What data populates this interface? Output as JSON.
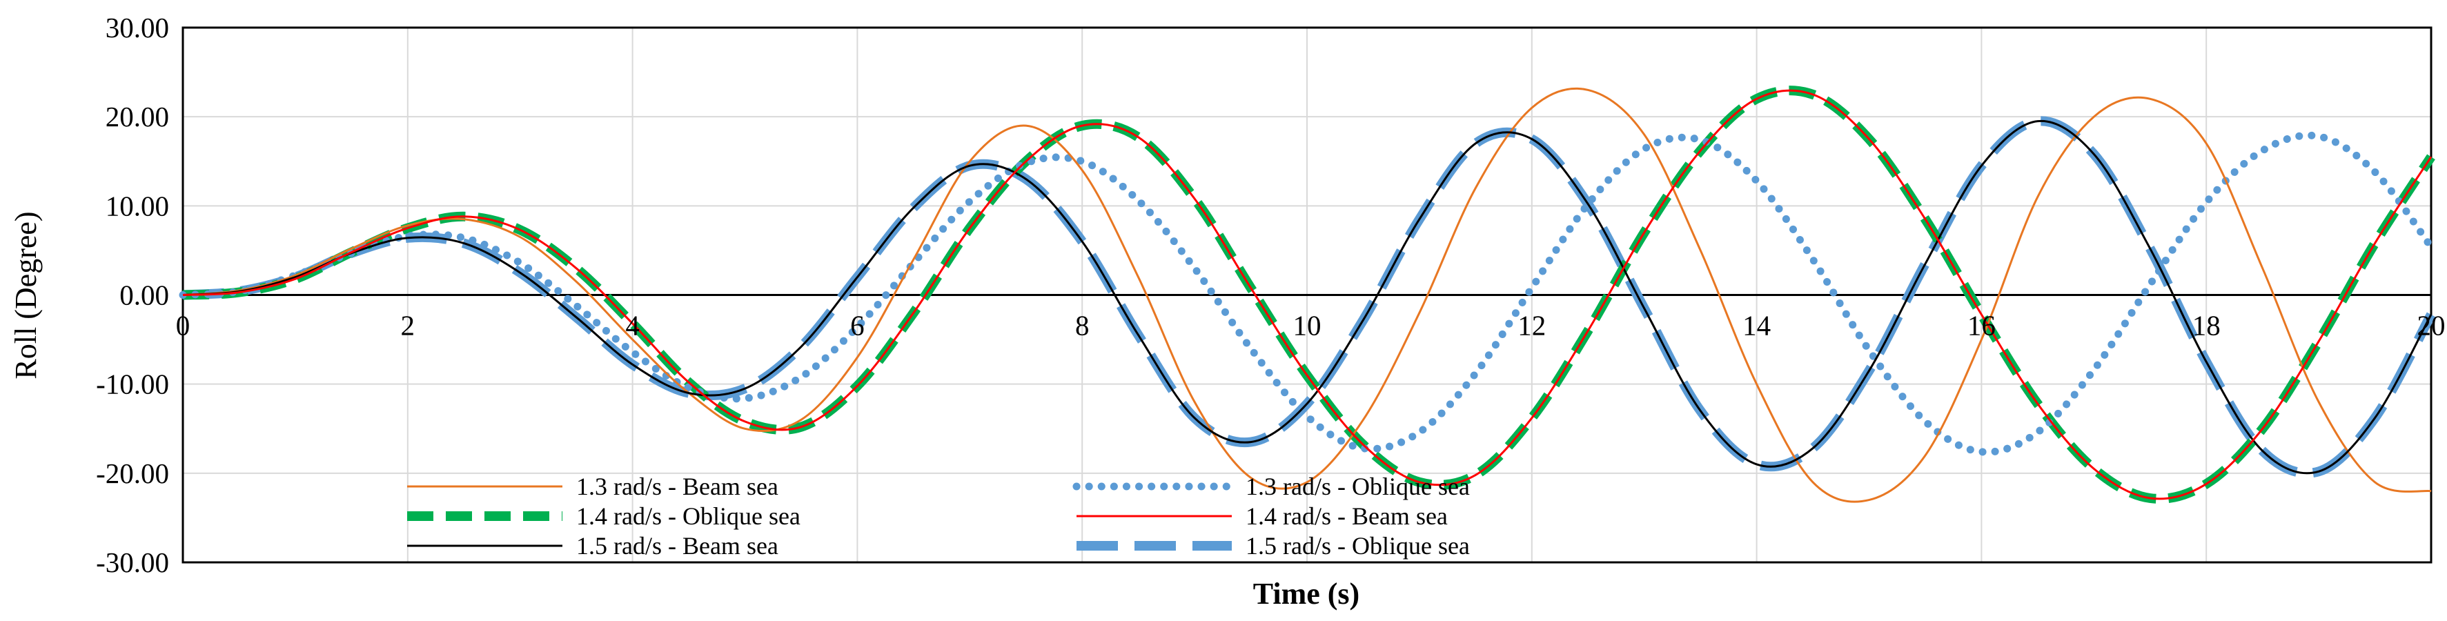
{
  "chart_data": {
    "type": "line",
    "xlabel": "Time (s)",
    "ylabel": "Roll (Degree)",
    "xlim": [
      0,
      20
    ],
    "ylim": [
      -30,
      30
    ],
    "x_ticks": [
      "0",
      "2",
      "4",
      "6",
      "8",
      "10",
      "12",
      "14",
      "16",
      "18",
      "20"
    ],
    "y_ticks": [
      "30.00",
      "20.00",
      "10.00",
      "0.00",
      "-10.00",
      "-20.00",
      "-30.00"
    ],
    "grid": true,
    "legend_position": "bottom-left inside plot, two columns",
    "x": [
      0,
      0.5,
      1,
      1.5,
      2,
      2.5,
      3,
      3.5,
      4,
      4.5,
      5,
      5.5,
      6,
      6.5,
      7,
      7.5,
      8,
      8.5,
      9,
      9.5,
      10,
      10.5,
      11,
      11.5,
      12,
      12.5,
      13,
      13.5,
      14,
      14.5,
      15,
      15.5,
      16,
      16.5,
      17,
      17.5,
      18,
      18.5,
      19,
      19.5,
      20
    ],
    "series": [
      {
        "name": "1.3 rad/s - Beam sea",
        "color": "#E87722",
        "style": "solid-thin",
        "values": [
          0,
          0.5,
          2.2,
          5.2,
          7.8,
          8.5,
          6.5,
          1.5,
          -5,
          -11,
          -15,
          -14,
          -7,
          4,
          15,
          19,
          14,
          2,
          -12,
          -20.5,
          -21,
          -14,
          -2,
          12,
          21,
          23,
          18,
          5,
          -10,
          -21,
          -23,
          -18,
          -5,
          11,
          20,
          22,
          17,
          3,
          -12,
          -21,
          -22
        ]
      },
      {
        "name": "1.4 rad/s - Oblique sea",
        "color": "#00B050",
        "style": "dashed-thick",
        "values": [
          0,
          0.3,
          1.8,
          4.8,
          7.5,
          8.8,
          7.3,
          3,
          -3.2,
          -9.8,
          -14.2,
          -14.8,
          -10.2,
          -2,
          7.5,
          15,
          19,
          17.7,
          10.8,
          0.8,
          -9,
          -16.8,
          -21,
          -20.2,
          -13.8,
          -4,
          7,
          16.2,
          22,
          22.5,
          17.5,
          8.5,
          -2.2,
          -12.2,
          -19.5,
          -22.8,
          -21.2,
          -15,
          -5.2,
          5.8,
          15.5
        ]
      },
      {
        "name": "1.5 rad/s - Beam sea",
        "color": "#000000",
        "style": "solid-thin",
        "values": [
          0,
          0.4,
          2,
          4.7,
          6.4,
          5.8,
          2.5,
          -2.5,
          -7.8,
          -11,
          -10.5,
          -5.8,
          2,
          9.8,
          14.5,
          13,
          6,
          -4.5,
          -13.8,
          -16.5,
          -12.2,
          -2.8,
          8.5,
          17,
          17.5,
          10.2,
          -1.5,
          -13,
          -19,
          -17.2,
          -8.5,
          3.5,
          14.5,
          19.5,
          15.8,
          5.2,
          -7.5,
          -17.5,
          -19.8,
          -13.8,
          -2.2
        ]
      },
      {
        "name": "1.3 rad/s - Oblique sea",
        "color": "#5B9BD5",
        "style": "dotted",
        "values": [
          0,
          0.4,
          2.2,
          4.7,
          6.6,
          6.4,
          3.6,
          -1.2,
          -6.4,
          -10.4,
          -11.6,
          -9.2,
          -3.6,
          3.6,
          10.5,
          14.8,
          15,
          10.6,
          3,
          -6,
          -13.6,
          -17.2,
          -15.4,
          -8.8,
          0.8,
          10.2,
          16.4,
          17.4,
          12.8,
          4,
          -6.2,
          -14.2,
          -17.6,
          -15.4,
          -8.4,
          1.2,
          10.4,
          16.2,
          17.8,
          13.8,
          5.4
        ]
      },
      {
        "name": "1.4 rad/s - Beam sea",
        "color": "#FF0000",
        "style": "solid-thin",
        "values": [
          0,
          0.3,
          1.8,
          4.8,
          7.5,
          8.8,
          7.3,
          3,
          -3.2,
          -9.8,
          -14.2,
          -14.8,
          -10.2,
          -2,
          7.5,
          15,
          19,
          17.7,
          10.8,
          0.8,
          -9,
          -16.8,
          -21,
          -20.2,
          -13.8,
          -4,
          7,
          16.2,
          22,
          22.5,
          17.5,
          8.5,
          -2.2,
          -12.2,
          -19.5,
          -22.8,
          -21.2,
          -15,
          -5.2,
          5.8,
          15.5
        ]
      },
      {
        "name": "1.5 rad/s - Oblique sea",
        "color": "#5B9BD5",
        "style": "dashed-thick",
        "values": [
          0,
          0.4,
          2,
          4.7,
          6.4,
          5.8,
          2.5,
          -2.5,
          -7.8,
          -11,
          -10.5,
          -5.8,
          2,
          9.8,
          14.5,
          13,
          6,
          -4.5,
          -13.8,
          -16.5,
          -12.2,
          -2.8,
          8.5,
          17,
          17.5,
          10.2,
          -1.5,
          -13,
          -19,
          -17.2,
          -8.5,
          3.5,
          14.5,
          19.5,
          15.8,
          5.2,
          -7.5,
          -17.5,
          -19.8,
          -13.8,
          -2.2
        ]
      }
    ]
  }
}
